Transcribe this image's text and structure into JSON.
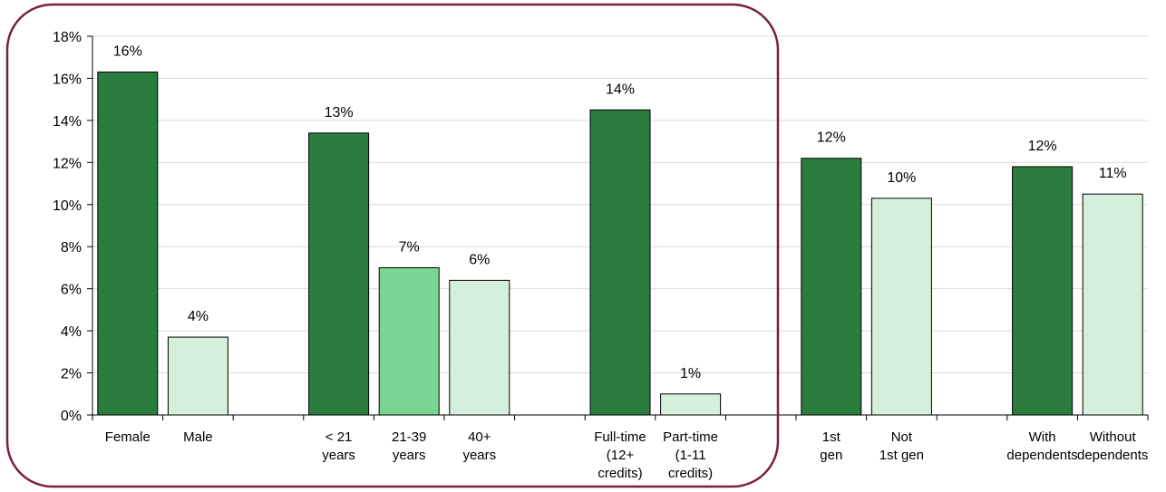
{
  "chart_data": {
    "type": "bar",
    "ylim": [
      0,
      18
    ],
    "y_ticks": [
      0,
      2,
      4,
      6,
      8,
      10,
      12,
      14,
      16,
      18
    ],
    "y_tick_labels": [
      "0%",
      "2%",
      "4%",
      "6%",
      "8%",
      "10%",
      "12%",
      "14%",
      "16%",
      "18%"
    ],
    "grid": true,
    "bars": [
      {
        "slot": 0,
        "category": [
          "Female"
        ],
        "value": 16.3,
        "label": "16%",
        "color": "#2a7d3f"
      },
      {
        "slot": 1,
        "category": [
          "Male"
        ],
        "value": 3.7,
        "label": "4%",
        "color": "#d4f0dc"
      },
      {
        "slot": 3,
        "category": [
          "< 21",
          "years"
        ],
        "value": 13.4,
        "label": "13%",
        "color": "#2a7d3f"
      },
      {
        "slot": 4,
        "category": [
          "21-39",
          "years"
        ],
        "value": 7.0,
        "label": "7%",
        "color": "#7ad592"
      },
      {
        "slot": 5,
        "category": [
          "40+",
          "years"
        ],
        "value": 6.4,
        "label": "6%",
        "color": "#d4f0dc"
      },
      {
        "slot": 7,
        "category": [
          "Full-time",
          "(12+",
          "credits)"
        ],
        "value": 14.5,
        "label": "14%",
        "color": "#2a7d3f"
      },
      {
        "slot": 8,
        "category": [
          "Part-time",
          "(1-11",
          "credits)"
        ],
        "value": 1.0,
        "label": "1%",
        "color": "#d4f0dc"
      },
      {
        "slot": 10,
        "category": [
          "1st",
          "gen"
        ],
        "value": 12.2,
        "label": "12%",
        "color": "#2a7d3f"
      },
      {
        "slot": 11,
        "category": [
          "Not",
          "1st gen"
        ],
        "value": 10.3,
        "label": "10%",
        "color": "#d4f0dc"
      },
      {
        "slot": 13,
        "category": [
          "With",
          "dependents"
        ],
        "value": 11.8,
        "label": "12%",
        "color": "#2a7d3f"
      },
      {
        "slot": 14,
        "category": [
          "Without",
          "dependents"
        ],
        "value": 10.5,
        "label": "11%",
        "color": "#d4f0dc"
      }
    ],
    "highlight_color": "#7a1f3d"
  }
}
